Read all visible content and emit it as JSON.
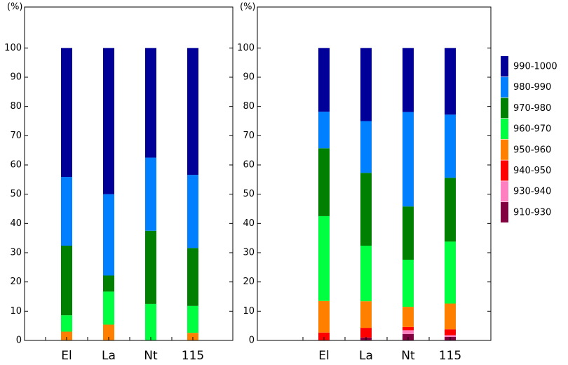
{
  "chart_data": [
    {
      "type": "bar",
      "stacked": true,
      "ylabel": "(%)",
      "categories": [
        "El",
        "La",
        "Nt",
        "115"
      ],
      "ylim": [
        0,
        114
      ],
      "yticks": [
        0,
        10,
        20,
        30,
        40,
        50,
        60,
        70,
        80,
        90,
        100
      ],
      "series": [
        {
          "color": "#ff8000",
          "values": [
            3,
            5.4,
            0,
            2.6
          ]
        },
        {
          "color": "#00ff40",
          "values": [
            5.6,
            11.3,
            12.5,
            9.2
          ]
        },
        {
          "color": "#008000",
          "values": [
            23.8,
            5.5,
            25,
            19.8
          ]
        },
        {
          "color": "#0080ff",
          "values": [
            23.5,
            27.8,
            25,
            25
          ]
        },
        {
          "color": "#000099",
          "values": [
            44.1,
            50,
            37.5,
            43.4
          ]
        }
      ]
    },
    {
      "type": "bar",
      "stacked": true,
      "ylabel": "(%)",
      "legend": "right",
      "categories": [
        "El",
        "La",
        "Nt",
        "115"
      ],
      "ylim": [
        0,
        114
      ],
      "yticks": [
        0,
        10,
        20,
        30,
        40,
        50,
        60,
        70,
        80,
        90,
        100
      ],
      "series": [
        {
          "name": "910-930",
          "color": "#800040",
          "values": [
            0,
            1,
            2.2,
            1.2
          ]
        },
        {
          "name": "930-940",
          "color": "#ff80c0",
          "values": [
            0,
            0,
            1.3,
            0.6
          ]
        },
        {
          "name": "940-950",
          "color": "#ff0000",
          "values": [
            2.7,
            3.3,
            1.1,
            2
          ]
        },
        {
          "name": "950-960",
          "color": "#ff8000",
          "values": [
            10.8,
            9.1,
            6.9,
            8.8
          ]
        },
        {
          "name": "960-970",
          "color": "#00ff40",
          "values": [
            29,
            19,
            16.1,
            21.2
          ]
        },
        {
          "name": "970-980",
          "color": "#008000",
          "values": [
            23.2,
            24.9,
            18.2,
            21.8
          ]
        },
        {
          "name": "980-990",
          "color": "#0080ff",
          "values": [
            12.5,
            17.7,
            32.3,
            21.6
          ]
        },
        {
          "name": "990-1000",
          "color": "#000099",
          "values": [
            21.8,
            25,
            21.9,
            22.8
          ]
        }
      ]
    }
  ]
}
